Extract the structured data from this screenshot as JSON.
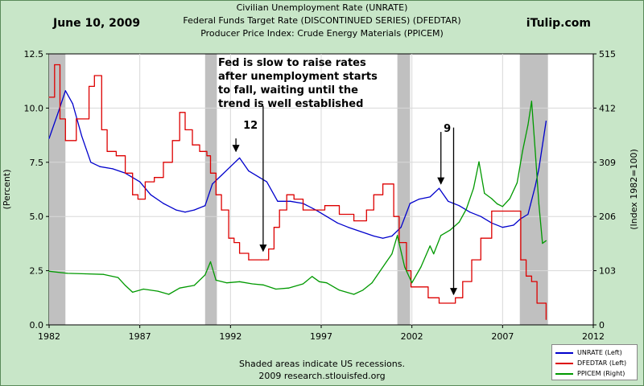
{
  "header": {
    "date": "June 10, 2009",
    "brand": "iTulip.com",
    "title_lines": [
      "Civilian Unemployment Rate (UNRATE)",
      "Federal Funds Target Rate  (DISCONTINUED SERIES) (DFEDTAR)",
      "Producer Price Index: Crude Energy Materials (PPICEM)"
    ]
  },
  "footer": {
    "line1": "Shaded areas indicate US recessions.",
    "line2": "2009 research.stlouisfed.org"
  },
  "chart_data": {
    "type": "line",
    "xlim": [
      1982,
      2012
    ],
    "x_ticks": [
      "1982",
      "1987",
      "1992",
      "1997",
      "2002",
      "2007",
      "2012"
    ],
    "left_axis": {
      "label": "(Percent)",
      "ylim": [
        0,
        12.5
      ],
      "ticks": [
        "0.0",
        "2.5",
        "5.0",
        "7.5",
        "10.0",
        "12.5"
      ]
    },
    "right_axis": {
      "label": "(Index 1982=100)",
      "ylim": [
        0,
        515
      ],
      "ticks": [
        "0",
        "103",
        "206",
        "309",
        "412",
        "515"
      ]
    },
    "recessions": [
      [
        1982.0,
        1982.9
      ],
      [
        1990.6,
        1991.25
      ],
      [
        2001.2,
        2001.9
      ],
      [
        2007.95,
        2009.5
      ]
    ],
    "series": [
      {
        "name": "UNRATE (Left)",
        "axis": "left",
        "color": "#0000cc",
        "x": [
          1982.0,
          1982.5,
          1982.9,
          1983.3,
          1983.8,
          1984.3,
          1984.8,
          1985.5,
          1986.2,
          1987.0,
          1987.6,
          1988.3,
          1989.0,
          1989.5,
          1990.0,
          1990.6,
          1991.0,
          1991.5,
          1992.0,
          1992.5,
          1993.0,
          1993.6,
          1994.0,
          1994.6,
          1995.3,
          1996.0,
          1996.7,
          1997.3,
          1997.9,
          1998.5,
          1999.2,
          1999.9,
          2000.4,
          2000.9,
          2001.4,
          2001.9,
          2002.4,
          2003.0,
          2003.5,
          2004.0,
          2004.6,
          2005.2,
          2005.8,
          2006.4,
          2007.0,
          2007.6,
          2008.0,
          2008.4,
          2008.8,
          2009.0,
          2009.4
        ],
        "y": [
          8.6,
          9.8,
          10.8,
          10.2,
          8.7,
          7.5,
          7.3,
          7.2,
          7.0,
          6.6,
          6.0,
          5.6,
          5.3,
          5.2,
          5.3,
          5.5,
          6.5,
          6.9,
          7.3,
          7.7,
          7.1,
          6.8,
          6.6,
          5.7,
          5.7,
          5.6,
          5.3,
          5.0,
          4.7,
          4.5,
          4.3,
          4.1,
          4.0,
          4.1,
          4.5,
          5.6,
          5.8,
          5.9,
          6.3,
          5.7,
          5.5,
          5.2,
          5.0,
          4.7,
          4.5,
          4.6,
          4.9,
          5.1,
          6.4,
          7.2,
          9.4
        ]
      },
      {
        "name": "DFEDTAR (Left)",
        "axis": "left",
        "color": "#dd0000",
        "step": true,
        "x": [
          1982.0,
          1982.3,
          1982.6,
          1982.9,
          1983.5,
          1984.2,
          1984.5,
          1984.9,
          1985.2,
          1985.7,
          1986.2,
          1986.6,
          1986.9,
          1987.3,
          1987.8,
          1988.3,
          1988.8,
          1989.2,
          1989.5,
          1989.9,
          1990.3,
          1990.7,
          1990.9,
          1991.2,
          1991.5,
          1991.9,
          1992.2,
          1992.5,
          1993.0,
          1993.7,
          1994.1,
          1994.4,
          1994.7,
          1995.1,
          1995.5,
          1996.0,
          1997.2,
          1998.0,
          1998.8,
          1999.5,
          1999.9,
          2000.4,
          2001.0,
          2001.3,
          2001.7,
          2001.95,
          2002.9,
          2003.5,
          2004.4,
          2004.8,
          2005.3,
          2005.8,
          2006.4,
          2007.6,
          2008.0,
          2008.3,
          2008.6,
          2008.9,
          2009.4
        ],
        "y": [
          10.5,
          12.0,
          9.5,
          8.5,
          9.5,
          11.0,
          11.5,
          9.0,
          8.0,
          7.8,
          7.0,
          6.0,
          5.8,
          6.6,
          6.8,
          7.5,
          8.5,
          9.8,
          9.0,
          8.3,
          8.0,
          7.8,
          7.0,
          6.0,
          5.3,
          4.0,
          3.8,
          3.3,
          3.0,
          3.0,
          3.5,
          4.5,
          5.3,
          6.0,
          5.8,
          5.3,
          5.5,
          5.1,
          4.8,
          5.3,
          6.0,
          6.5,
          5.0,
          3.8,
          2.5,
          1.75,
          1.25,
          1.0,
          1.25,
          2.0,
          3.0,
          4.0,
          5.25,
          5.25,
          3.0,
          2.25,
          2.0,
          1.0,
          0.25
        ]
      },
      {
        "name": "PPICEM (Right)",
        "axis": "right",
        "color": "#009900",
        "x": [
          1982.0,
          1983.0,
          1984.0,
          1985.0,
          1985.8,
          1986.2,
          1986.6,
          1987.2,
          1988.0,
          1988.6,
          1989.2,
          1990.0,
          1990.6,
          1990.9,
          1991.2,
          1991.8,
          1992.5,
          1993.2,
          1993.8,
          1994.5,
          1995.2,
          1996.0,
          1996.5,
          1996.9,
          1997.3,
          1998.0,
          1998.8,
          1999.3,
          1999.8,
          2000.2,
          2000.6,
          2000.9,
          2001.2,
          2001.6,
          2002.0,
          2002.5,
          2003.0,
          2003.2,
          2003.6,
          2004.1,
          2004.6,
          2005.0,
          2005.4,
          2005.7,
          2006.0,
          2006.4,
          2006.7,
          2007.0,
          2007.4,
          2007.8,
          2008.1,
          2008.4,
          2008.6,
          2008.8,
          2009.0,
          2009.2,
          2009.4
        ],
        "y": [
          102,
          98,
          97,
          96,
          90,
          75,
          62,
          68,
          64,
          58,
          70,
          75,
          95,
          120,
          85,
          80,
          82,
          78,
          76,
          68,
          70,
          78,
          92,
          82,
          80,
          66,
          58,
          66,
          80,
          100,
          120,
          135,
          170,
          110,
          80,
          110,
          150,
          135,
          170,
          180,
          195,
          220,
          260,
          310,
          250,
          240,
          230,
          225,
          240,
          270,
          330,
          380,
          425,
          330,
          230,
          155,
          160
        ]
      }
    ],
    "annotations": [
      {
        "text": "Fed is slow to raise rates after unemployment starts to fall, waiting until the trend is well established",
        "lines": [
          "Fed is slow to raise rates",
          "after unemployment starts",
          "to fall, waiting until the",
          "trend is well established"
        ]
      },
      {
        "text": "12",
        "arrows": [
          [
            1992.3,
            8.6,
            1992.3,
            8.0
          ],
          [
            1993.8,
            10.1,
            1993.8,
            3.4
          ]
        ],
        "label_x": 1993.1,
        "label_y": 9.05
      },
      {
        "text": "9",
        "arrows": [
          [
            2003.6,
            8.9,
            2003.6,
            6.5
          ],
          [
            2004.3,
            9.1,
            2004.3,
            1.4
          ]
        ],
        "label_x": 2003.95,
        "label_y": 8.9
      }
    ]
  },
  "legend": {
    "items": [
      {
        "label": "UNRATE (Left)",
        "color": "#0000cc"
      },
      {
        "label": "DFEDTAR (Left)",
        "color": "#dd0000"
      },
      {
        "label": "PPICEM (Right)",
        "color": "#009900"
      }
    ]
  }
}
